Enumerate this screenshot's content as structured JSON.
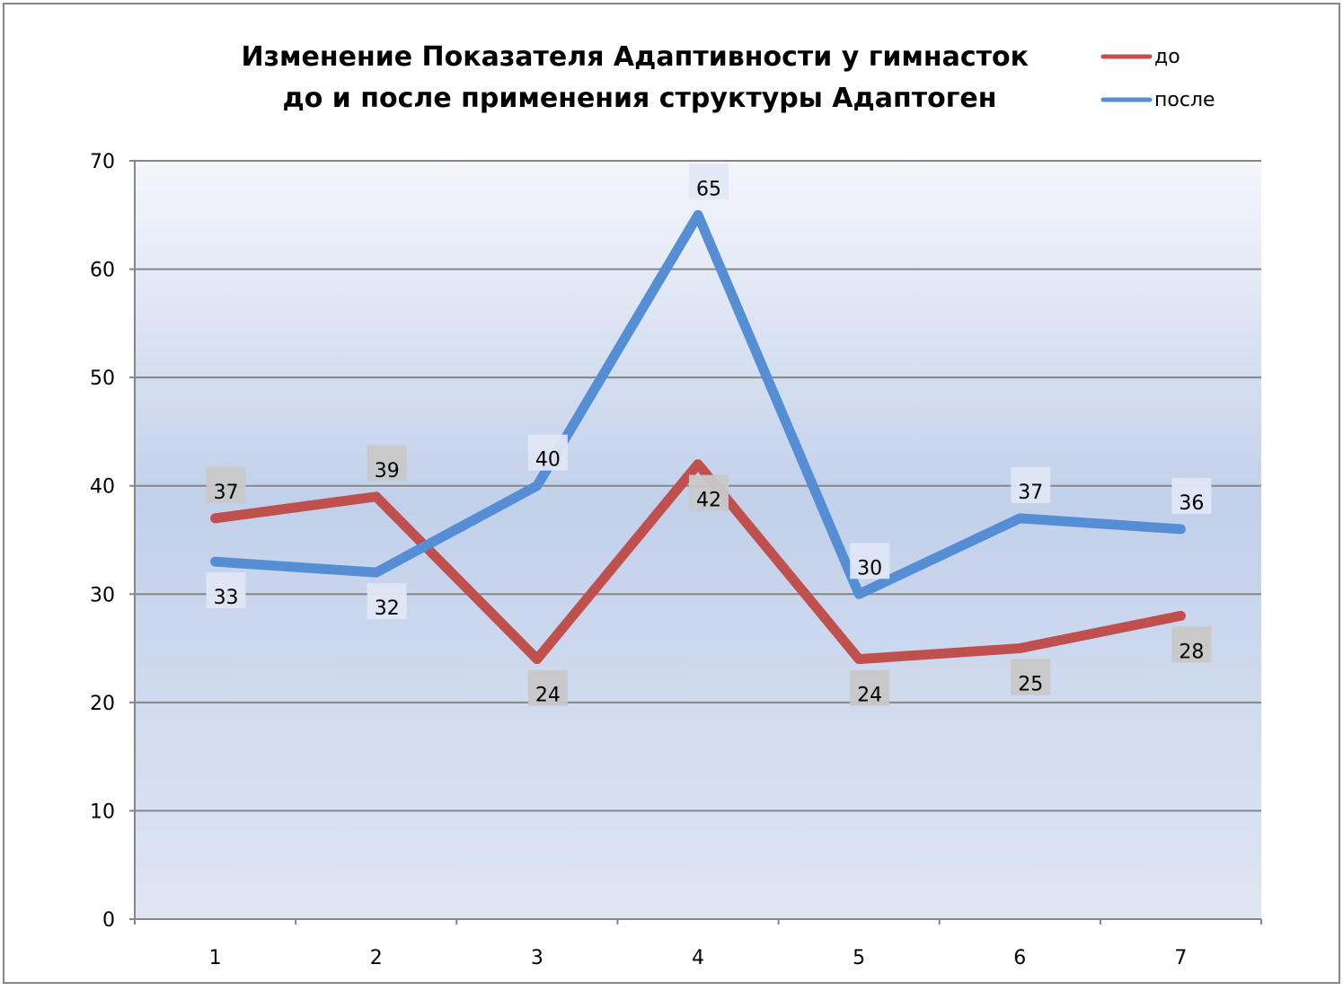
{
  "chart_data": {
    "type": "line",
    "title": [
      "Изменение Показателя  Адаптивности  у гимнасток",
      "до и после применения структуры Адаптоген"
    ],
    "categories": [
      "1",
      "2",
      "3",
      "4",
      "5",
      "6",
      "7"
    ],
    "ylim": [
      0,
      70
    ],
    "y_ticks": [
      "0",
      "10",
      "20",
      "30",
      "40",
      "50",
      "60",
      "70"
    ],
    "grid": true,
    "legend_position": "top-right",
    "series": [
      {
        "name": "до",
        "color": "#c0504d",
        "values": [
          37,
          39,
          24,
          42,
          24,
          25,
          28
        ],
        "labels": [
          "37",
          "39",
          "24",
          "42",
          "24",
          "25",
          "28"
        ]
      },
      {
        "name": "после",
        "color": "#558ed5",
        "values": [
          33,
          32,
          40,
          65,
          30,
          37,
          36
        ],
        "labels": [
          "33",
          "32",
          "40",
          "65",
          "30",
          "37",
          "36"
        ]
      }
    ]
  }
}
